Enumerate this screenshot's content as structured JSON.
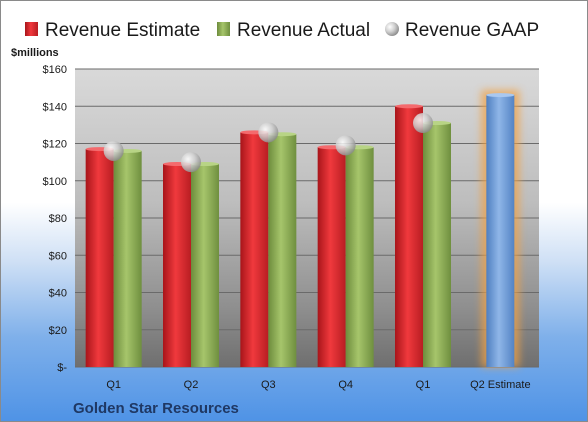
{
  "chart_data": {
    "type": "bar",
    "ylabel": "$millions",
    "ylim": [
      0,
      160
    ],
    "yticks": [
      "$-",
      "$20",
      "$40",
      "$60",
      "$80",
      "$100",
      "$120",
      "$140",
      "$160"
    ],
    "ytick_values": [
      0,
      20,
      40,
      60,
      80,
      100,
      120,
      140,
      160
    ],
    "categories": [
      "Q1",
      "Q2",
      "Q3",
      "Q4",
      "Q1",
      "Q2 Estimate"
    ],
    "series": [
      {
        "name": "Revenue Estimate",
        "color": "#e3262b",
        "values": [
          117,
          109,
          126,
          118,
          140,
          null
        ]
      },
      {
        "name": "Revenue Actual",
        "color": "#8fb258",
        "values": [
          116,
          109,
          125,
          118,
          131,
          null
        ]
      },
      {
        "name": "Revenue GAAP",
        "color": "#c8c8c8",
        "values": [
          116,
          110,
          126,
          119,
          131,
          null
        ]
      }
    ],
    "forecast": {
      "category": "Q2 Estimate",
      "value": 146,
      "color": "#6f9fdb",
      "glow": "#f2a245"
    },
    "legend": "top",
    "grid": true
  },
  "footer": {
    "company": "Golden Star Resources"
  }
}
